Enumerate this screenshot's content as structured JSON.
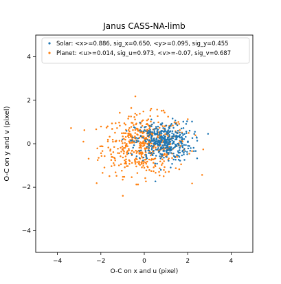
{
  "chart_data": {
    "type": "scatter",
    "title": "Janus   CASS-NA-limb",
    "xlabel": "O-C on x and u (pixel)",
    "ylabel": "O-C on y and v (pixel)",
    "xlim": [
      -5,
      5
    ],
    "ylim": [
      -5,
      5
    ],
    "xticks": [
      -4,
      -2,
      0,
      2,
      4
    ],
    "yticks": [
      -4,
      -2,
      0,
      2,
      4
    ],
    "grid": false,
    "legend_position": "top",
    "series": [
      {
        "name": "Solar: <x>=0.886, sig_x=0.650, <y>=0.095, sig_y=0.455",
        "color": "#1f77b4",
        "mean_x": 0.886,
        "sd_x": 0.65,
        "mean_y": 0.095,
        "sd_y": 0.455,
        "count": 420
      },
      {
        "name": "Planet: <u>=0.014, sig_u=0.973, <v>=-0.07, sig_v=0.687",
        "color": "#ff7f0e",
        "mean_x": 0.014,
        "sd_x": 0.973,
        "mean_y": -0.07,
        "sd_y": 0.687,
        "count": 520
      }
    ]
  }
}
